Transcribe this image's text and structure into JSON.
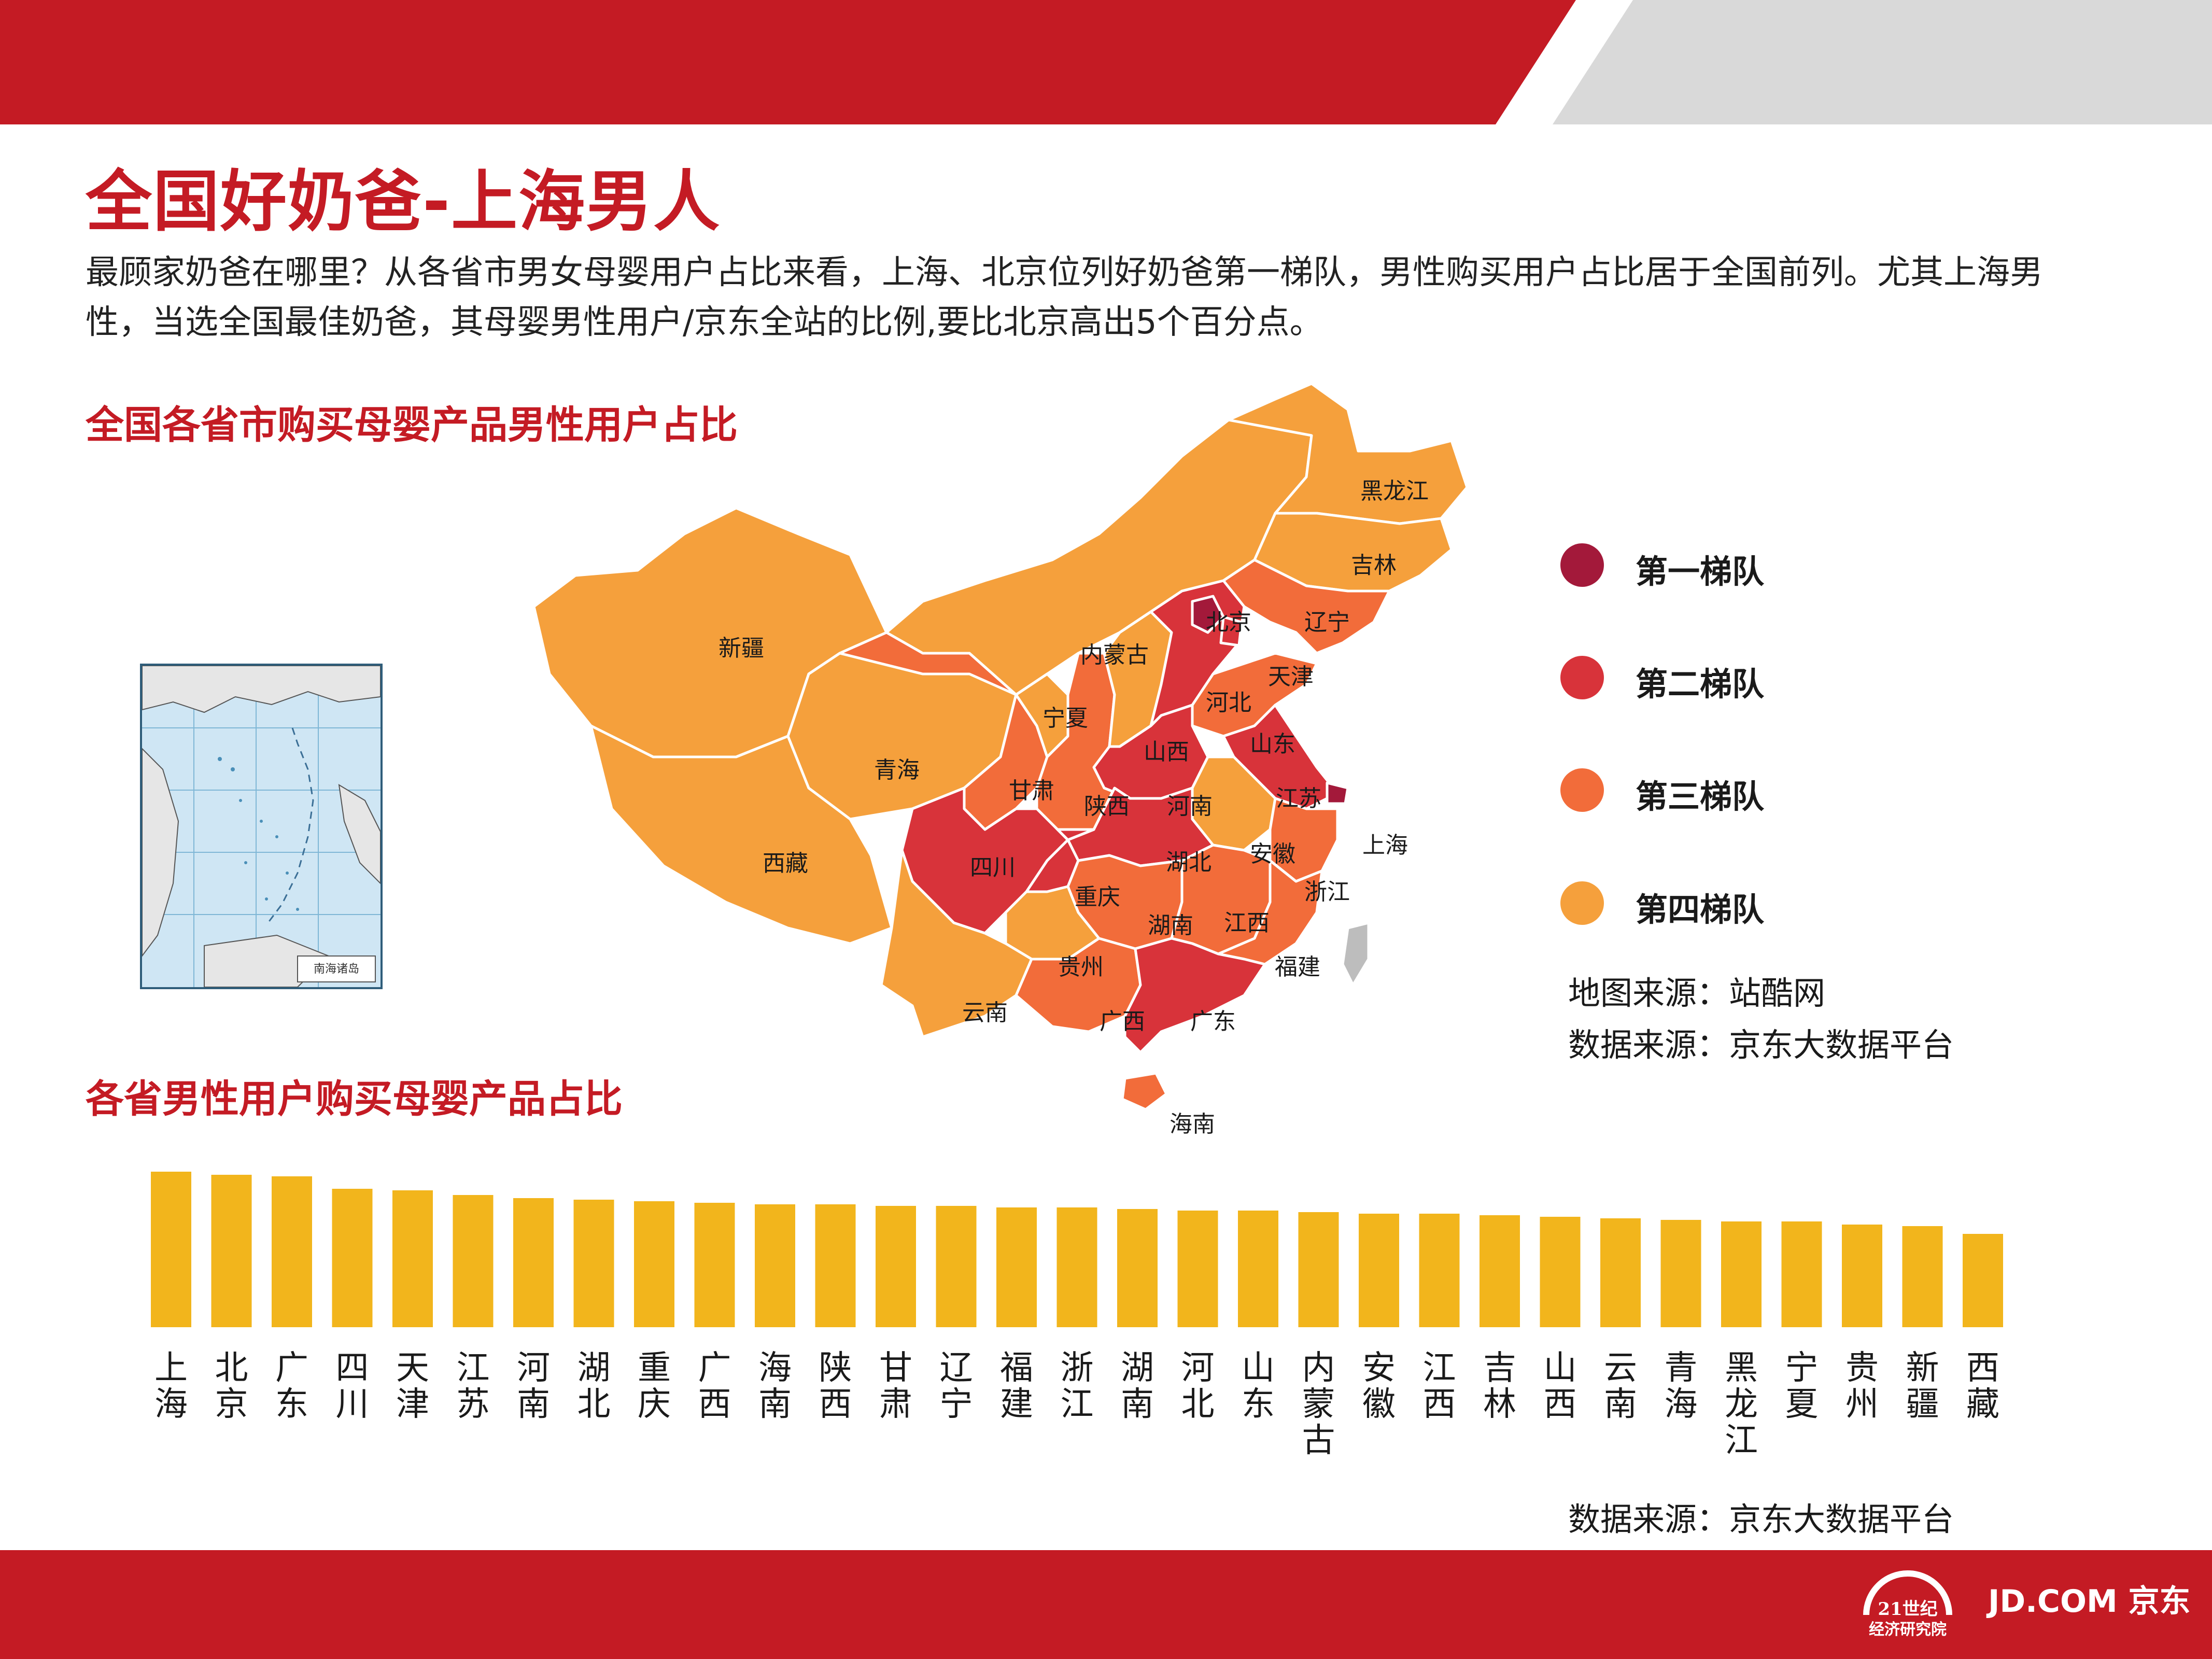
{
  "title": "全国好奶爸-上海男人",
  "intro": "最顾家奶爸在哪里？从各省市男女母婴用户占比来看，上海、北京位列好奶爸第一梯队，男性购买用户占比居于全国前列。尤其上海男性，当选全国最佳奶爸，其母婴男性用户/京东全站的比例,要比北京高出5个百分点。",
  "map_title": "全国各省市购买母婴产品男性用户占比",
  "bar_title": "各省男性用户购买母婴产品占比",
  "map_source": "地图来源：站酷网",
  "data_source_map": "数据来源：京东大数据平台",
  "data_source_bar": "数据来源：京东大数据平台",
  "inset_caption": "南海诸岛",
  "logo_21_line1": "21世纪",
  "logo_21_line2": "经济研究院",
  "logo_jd": "JD.COM 京东",
  "colors": {
    "brand_red": "#c41b24",
    "tier1": "#a3193a",
    "tier2": "#d8333a",
    "tier3": "#f26c3a",
    "tier4": "#f5a03c",
    "bar": "#f2b51c",
    "top_band_gray": "#d9d9d9"
  },
  "legend": [
    {
      "label": "第一梯队",
      "color": "#a3193a"
    },
    {
      "label": "第二梯队",
      "color": "#d8333a"
    },
    {
      "label": "第三梯队",
      "color": "#f26c3a"
    },
    {
      "label": "第四梯队",
      "color": "#f5a03c"
    }
  ],
  "map": {
    "provinces": [
      {
        "name": "上海",
        "tier": 1
      },
      {
        "name": "北京",
        "tier": 1
      },
      {
        "name": "天津",
        "tier": 2
      },
      {
        "name": "河北",
        "tier": 2
      },
      {
        "name": "江苏",
        "tier": 2
      },
      {
        "name": "河南",
        "tier": 2
      },
      {
        "name": "湖北",
        "tier": 2
      },
      {
        "name": "四川",
        "tier": 2
      },
      {
        "name": "重庆",
        "tier": 2
      },
      {
        "name": "广东",
        "tier": 2
      },
      {
        "name": "辽宁",
        "tier": 3
      },
      {
        "name": "山东",
        "tier": 3
      },
      {
        "name": "浙江",
        "tier": 3
      },
      {
        "name": "江西",
        "tier": 3
      },
      {
        "name": "湖南",
        "tier": 3
      },
      {
        "name": "福建",
        "tier": 3
      },
      {
        "name": "广西",
        "tier": 3
      },
      {
        "name": "陕西",
        "tier": 3
      },
      {
        "name": "甘肃",
        "tier": 3
      },
      {
        "name": "海南",
        "tier": 3
      },
      {
        "name": "黑龙江",
        "tier": 4
      },
      {
        "name": "吉林",
        "tier": 4
      },
      {
        "name": "内蒙古",
        "tier": 4
      },
      {
        "name": "新疆",
        "tier": 4
      },
      {
        "name": "西藏",
        "tier": 4
      },
      {
        "name": "青海",
        "tier": 4
      },
      {
        "name": "宁夏",
        "tier": 4
      },
      {
        "name": "山西",
        "tier": 4
      },
      {
        "name": "安徽",
        "tier": 4
      },
      {
        "name": "贵州",
        "tier": 4
      },
      {
        "name": "云南",
        "tier": 4
      }
    ]
  },
  "chart_data": {
    "type": "bar",
    "title": "各省男性用户购买母婴产品占比",
    "categories": [
      "上海",
      "北京",
      "广东",
      "四川",
      "天津",
      "江苏",
      "河南",
      "湖北",
      "重庆",
      "广西",
      "海南",
      "陕西",
      "甘肃",
      "辽宁",
      "福建",
      "浙江",
      "湖南",
      "河北",
      "山东",
      "内蒙古",
      "安徽",
      "江西",
      "吉林",
      "山西",
      "云南",
      "青海",
      "黑龙江",
      "宁夏",
      "贵州",
      "新疆",
      "西藏"
    ],
    "values": [
      100,
      98,
      97,
      89,
      88,
      85,
      83,
      82,
      81,
      80,
      79,
      79,
      78,
      78,
      77,
      77,
      76,
      75,
      75,
      74,
      73,
      73,
      72,
      71,
      70,
      69,
      68,
      68,
      66,
      65,
      60
    ],
    "value_axis": "relative bar height, no printed scale",
    "ylim": [
      0,
      100
    ],
    "grid": false
  }
}
